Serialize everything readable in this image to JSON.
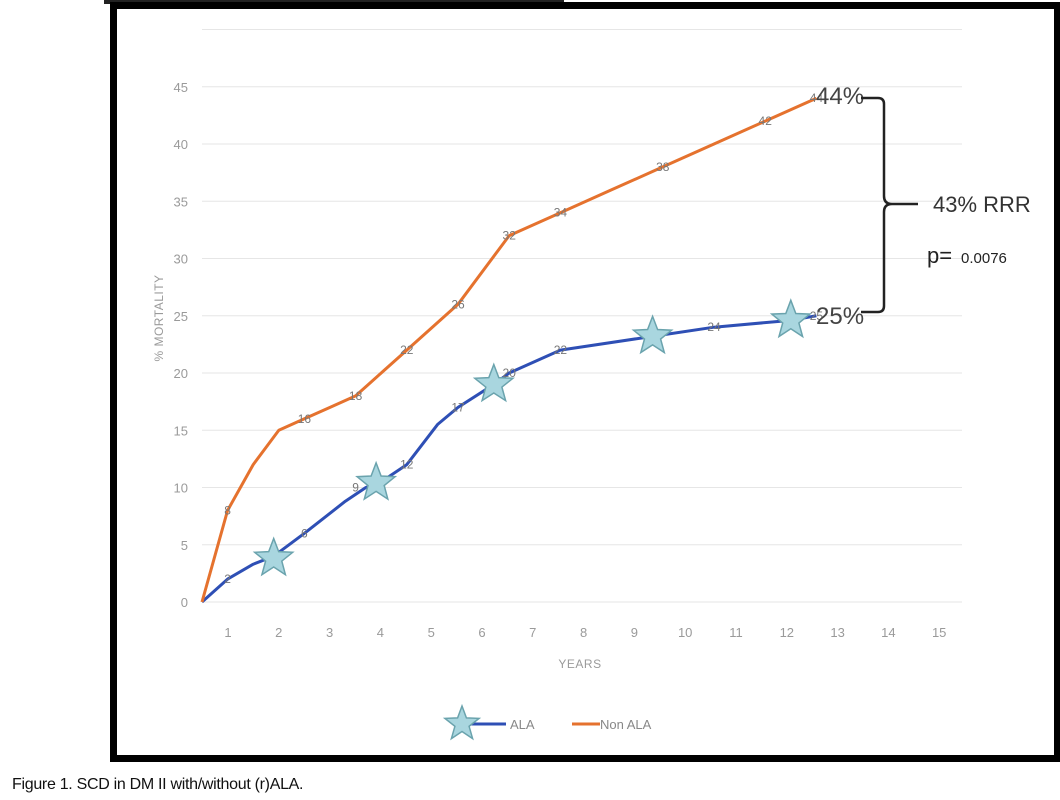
{
  "chart_data": {
    "type": "line",
    "title": "",
    "xlabel": "YEARS",
    "ylabel": "% MORTALITY",
    "xlim": [
      0,
      15
    ],
    "ylim": [
      0,
      50
    ],
    "x_ticks": [
      1,
      2,
      3,
      4,
      5,
      6,
      7,
      8,
      9,
      10,
      11,
      12,
      13,
      14,
      15
    ],
    "y_ticks": [
      0,
      5,
      10,
      15,
      20,
      25,
      30,
      35,
      40,
      45
    ],
    "grid": true,
    "legend": "bottom",
    "series": [
      {
        "name": "ALA",
        "color": "#2e4fb5",
        "marker": "star",
        "x": [
          0,
          0.5,
          1.0,
          1.4,
          2.0,
          2.8,
          3.2,
          3.5,
          4.0,
          4.6,
          5.0,
          5.7,
          6.0,
          7.0,
          8.8,
          10.0,
          11.5,
          12
        ],
        "y": [
          0,
          2,
          3.3,
          4,
          6,
          8.8,
          10,
          10.5,
          12,
          15.5,
          17,
          19,
          20,
          22,
          23.2,
          24,
          24.6,
          25
        ],
        "labels": [
          {
            "x": 0.5,
            "y": 2,
            "text": "2"
          },
          {
            "x": 2.0,
            "y": 6,
            "text": "6"
          },
          {
            "x": 3.0,
            "y": 10,
            "text": "9"
          },
          {
            "x": 4.0,
            "y": 12,
            "text": "12"
          },
          {
            "x": 5.0,
            "y": 17,
            "text": "17"
          },
          {
            "x": 6.0,
            "y": 20,
            "text": "20"
          },
          {
            "x": 7.0,
            "y": 22,
            "text": "22"
          },
          {
            "x": 10.0,
            "y": 24,
            "text": "24"
          },
          {
            "x": 12.0,
            "y": 25,
            "text": "25"
          }
        ],
        "stars": [
          {
            "x": 1.4,
            "y": 3.8
          },
          {
            "x": 3.4,
            "y": 10.4
          },
          {
            "x": 5.7,
            "y": 19
          },
          {
            "x": 8.8,
            "y": 23.2
          },
          {
            "x": 11.5,
            "y": 24.6
          }
        ]
      },
      {
        "name": "Non ALA",
        "color": "#e5722e",
        "x": [
          0,
          0.5,
          1.0,
          1.5,
          2.0,
          2.5,
          3.0,
          3.5,
          4.0,
          5.0,
          6.0,
          7.0,
          8.0,
          9.0,
          10.0,
          11.0,
          12.0
        ],
        "y": [
          0,
          8,
          12,
          15,
          16,
          17,
          18,
          20,
          22,
          26,
          32,
          34,
          36,
          38,
          40,
          42,
          44
        ],
        "labels": [
          {
            "x": 0.5,
            "y": 8,
            "text": "8"
          },
          {
            "x": 2.0,
            "y": 16,
            "text": "16"
          },
          {
            "x": 3.0,
            "y": 18,
            "text": "18"
          },
          {
            "x": 4.0,
            "y": 22,
            "text": "22"
          },
          {
            "x": 5.0,
            "y": 26,
            "text": "26"
          },
          {
            "x": 6.0,
            "y": 32,
            "text": "32"
          },
          {
            "x": 7.0,
            "y": 34,
            "text": "34"
          },
          {
            "x": 9.0,
            "y": 38,
            "text": "38"
          },
          {
            "x": 11.0,
            "y": 42,
            "text": "42"
          },
          {
            "x": 12.0,
            "y": 44,
            "text": "44"
          }
        ]
      }
    ],
    "annotations": {
      "top_value": "44%",
      "bottom_value": "25%",
      "rrr": "43% RRR",
      "p_prefix": "p=",
      "p_value": "0.0076"
    }
  },
  "caption": "Figure 1. SCD in DM II with/without (r)ALA."
}
